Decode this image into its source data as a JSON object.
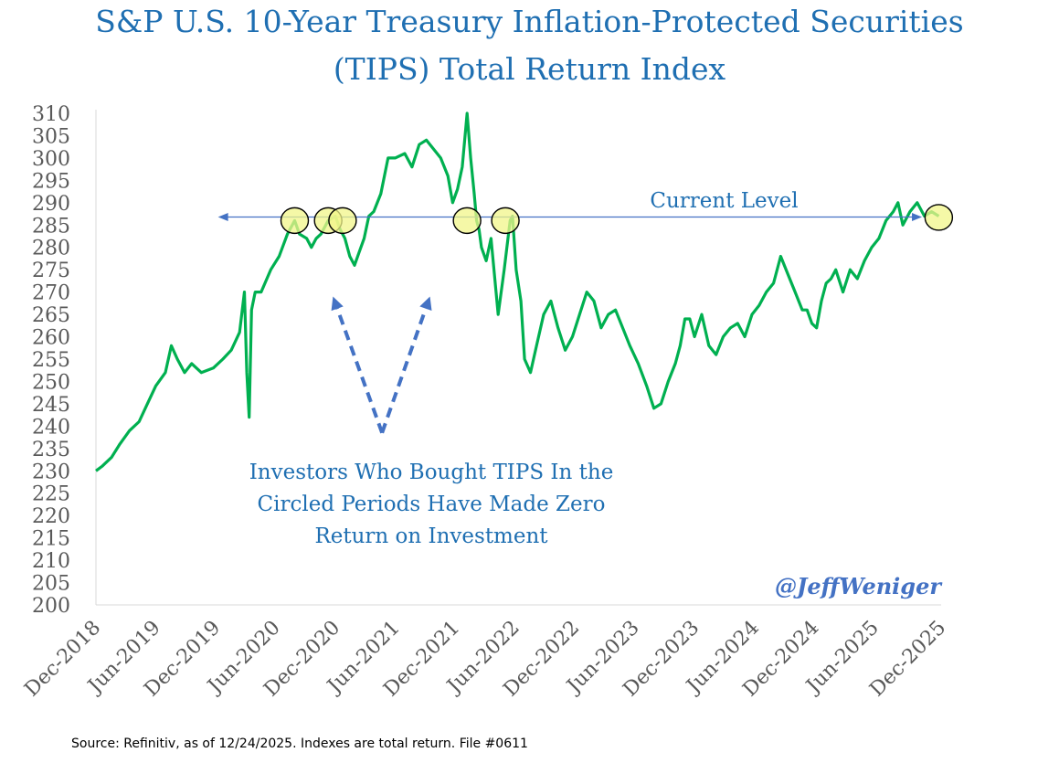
{
  "colors": {
    "title": "#1f6fb2",
    "line": "#00b050",
    "arrow": "#4472c4",
    "dashed_arrow": "#4472c4",
    "annotation": "#1f6fb2",
    "handle": "#4472c4",
    "circle_fill": "#f2f58a",
    "axis_text": "#595959"
  },
  "chart_data": {
    "type": "line",
    "title": "S&P U.S. 10-Year Treasury Inflation-Protected Securities (TIPS) Total Return Index",
    "title_line1": "S&P U.S. 10-Year Treasury Inflation-Protected Securities",
    "title_line2": "(TIPS) Total Return Index",
    "xlabel": "",
    "ylabel": "",
    "ylim": [
      200,
      310
    ],
    "y_ticks": [
      200,
      205,
      210,
      215,
      220,
      225,
      230,
      235,
      240,
      245,
      250,
      255,
      260,
      265,
      270,
      275,
      280,
      285,
      290,
      295,
      300,
      305,
      310
    ],
    "x_range": [
      2018.92,
      2025.98
    ],
    "x_tick_labels": [
      "Dec-2018",
      "Jun-2019",
      "Dec-2019",
      "Jun-2020",
      "Dec-2020",
      "Jun-2021",
      "Dec-2021",
      "Jun-2022",
      "Dec-2022",
      "Jun-2023",
      "Dec-2023",
      "Jun-2024",
      "Dec-2024",
      "Jun-2025",
      "Dec-2025"
    ],
    "x_tick_values": [
      2018.92,
      2019.42,
      2019.92,
      2020.42,
      2020.92,
      2021.42,
      2021.92,
      2022.42,
      2022.92,
      2023.42,
      2023.92,
      2024.42,
      2024.92,
      2025.42,
      2025.98
    ],
    "series": [
      {
        "name": "S&P U.S. 10-Year TIPS Total Return Index",
        "x": [
          2018.92,
          2018.97,
          2019.05,
          2019.12,
          2019.2,
          2019.28,
          2019.35,
          2019.42,
          2019.5,
          2019.55,
          2019.6,
          2019.66,
          2019.72,
          2019.8,
          2019.9,
          2019.98,
          2020.05,
          2020.12,
          2020.16,
          2020.18,
          2020.2,
          2020.22,
          2020.25,
          2020.3,
          2020.38,
          2020.45,
          2020.52,
          2020.58,
          2020.62,
          2020.68,
          2020.72,
          2020.76,
          2020.8,
          2020.86,
          2020.92,
          2020.96,
          2021.0,
          2021.04,
          2021.08,
          2021.12,
          2021.16,
          2021.2,
          2021.24,
          2021.3,
          2021.36,
          2021.42,
          2021.5,
          2021.56,
          2021.62,
          2021.68,
          2021.74,
          2021.8,
          2021.86,
          2021.9,
          2021.94,
          2021.98,
          2022.02,
          2022.05,
          2022.08,
          2022.1,
          2022.12,
          2022.14,
          2022.18,
          2022.22,
          2022.28,
          2022.33,
          2022.38,
          2022.4,
          2022.43,
          2022.47,
          2022.5,
          2022.55,
          2022.6,
          2022.66,
          2022.72,
          2022.78,
          2022.84,
          2022.9,
          2022.96,
          2023.02,
          2023.08,
          2023.14,
          2023.2,
          2023.26,
          2023.32,
          2023.38,
          2023.45,
          2023.52,
          2023.58,
          2023.64,
          2023.7,
          2023.76,
          2023.8,
          2023.84,
          2023.88,
          2023.92,
          2023.98,
          2024.04,
          2024.1,
          2024.16,
          2024.22,
          2024.28,
          2024.34,
          2024.4,
          2024.46,
          2024.52,
          2024.58,
          2024.64,
          2024.7,
          2024.76,
          2024.82,
          2024.86,
          2024.9,
          2024.94,
          2024.98,
          2025.02,
          2025.06,
          2025.1,
          2025.16,
          2025.22,
          2025.28,
          2025.34,
          2025.4,
          2025.46,
          2025.52,
          2025.58,
          2025.62,
          2025.66,
          2025.72,
          2025.78,
          2025.84,
          2025.9,
          2025.96
        ],
        "values": [
          230,
          231,
          233,
          236,
          239,
          241,
          245,
          249,
          252,
          258,
          255,
          252,
          254,
          252,
          253,
          255,
          257,
          261,
          270,
          252,
          242,
          266,
          270,
          270,
          275,
          278,
          283,
          286,
          283,
          282,
          280,
          282,
          283,
          286,
          287,
          284,
          282,
          278,
          276,
          279,
          282,
          287,
          288,
          292,
          300,
          300,
          301,
          298,
          303,
          304,
          302,
          300,
          296,
          290,
          293,
          298,
          310,
          300,
          292,
          286,
          284,
          280,
          277,
          282,
          265,
          275,
          286,
          287,
          275,
          268,
          255,
          252,
          258,
          265,
          268,
          262,
          257,
          260,
          265,
          270,
          268,
          262,
          265,
          266,
          262,
          258,
          254,
          249,
          244,
          245,
          250,
          254,
          258,
          264,
          264,
          260,
          265,
          258,
          256,
          260,
          262,
          263,
          260,
          265,
          267,
          270,
          272,
          278,
          274,
          270,
          266,
          266,
          263,
          262,
          268,
          272,
          273,
          275,
          270,
          275,
          273,
          277,
          280,
          282,
          286,
          288,
          290,
          285,
          288,
          290,
          287,
          288,
          287
        ]
      }
    ],
    "current_level": 286.8,
    "circled_points": [
      {
        "x": 2020.58,
        "y": 286
      },
      {
        "x": 2020.86,
        "y": 286
      },
      {
        "x": 2020.98,
        "y": 286
      },
      {
        "x": 2022.02,
        "y": 286
      },
      {
        "x": 2022.34,
        "y": 286
      },
      {
        "x": 2025.96,
        "y": 286.7
      }
    ],
    "annotations": {
      "current_level": "Current Level",
      "investors_line1": "Investors Who Bought TIPS In the",
      "investors_line2": "Circled Periods Have Made Zero",
      "investors_line3": "Return on Investment"
    },
    "handle": "@JeffWeniger",
    "source": "Source: Refinitiv, as of 12/24/2025. Indexes are total return. File #0611",
    "grid": false,
    "legend": "none"
  }
}
